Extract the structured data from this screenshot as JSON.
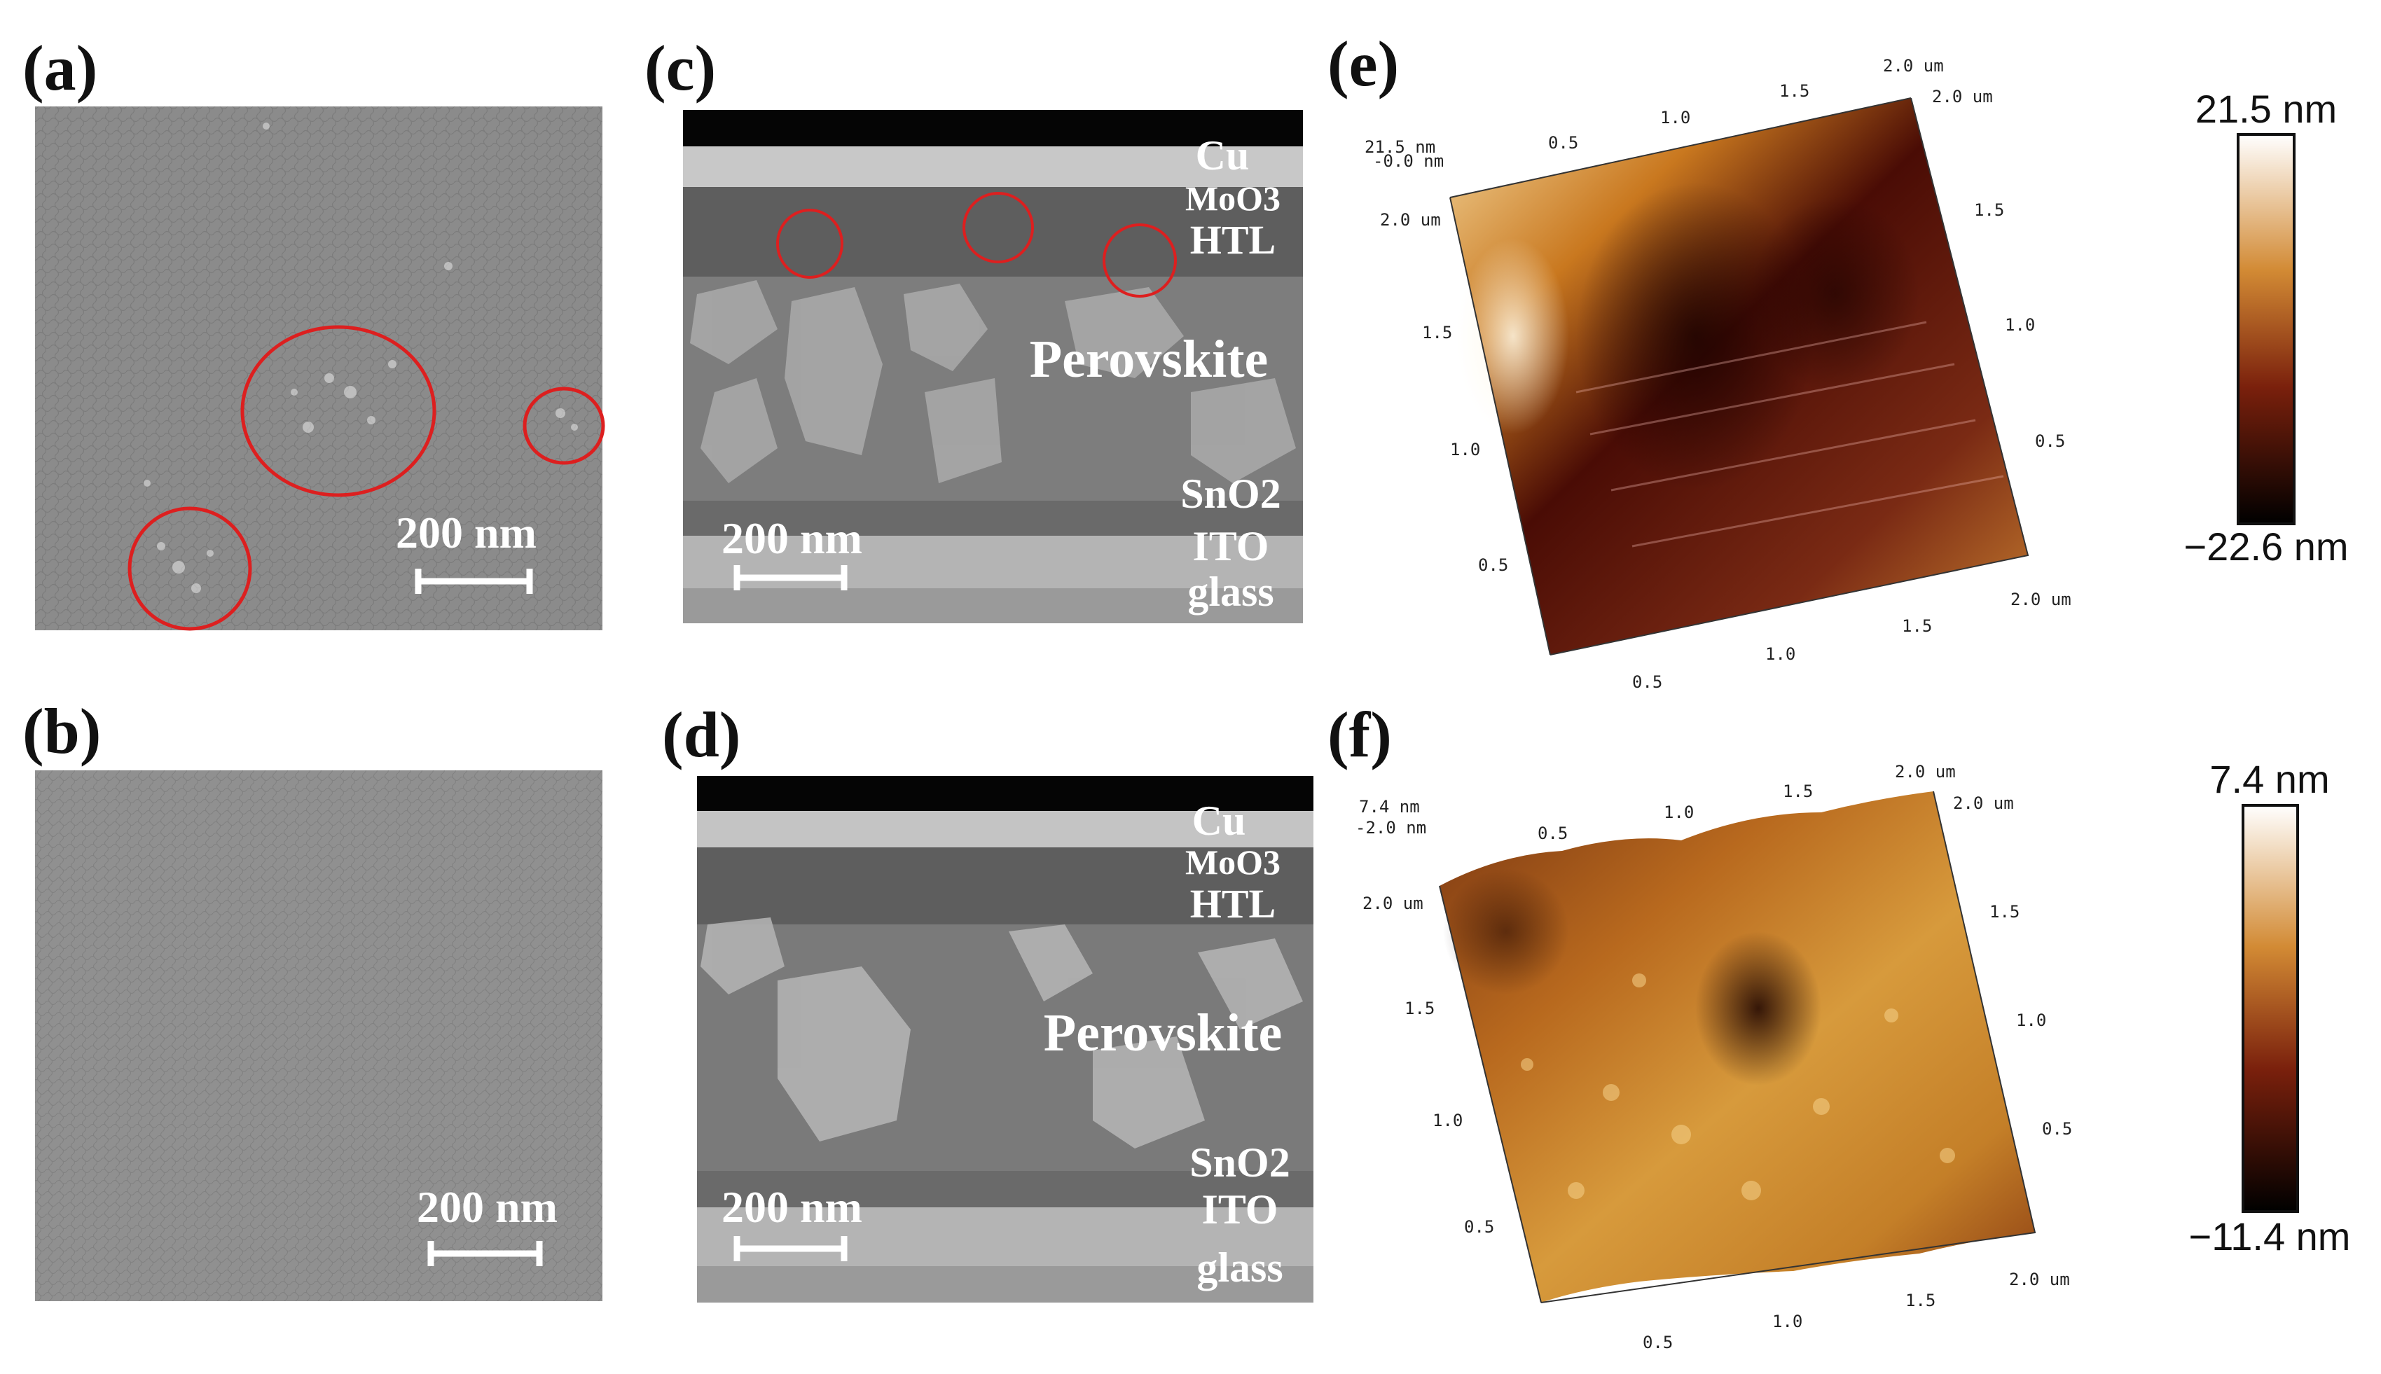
{
  "panels": {
    "a": {
      "label": "(a)",
      "scale_bar": "200 nm"
    },
    "b": {
      "label": "(b)",
      "scale_bar": "200 nm"
    },
    "c": {
      "label": "(c)",
      "scale_bar": "200 nm",
      "layers": [
        "Cu",
        "MoO3",
        "HTL",
        "Perovskite",
        "SnO2",
        "ITO",
        "glass"
      ]
    },
    "d": {
      "label": "(d)",
      "scale_bar": "200 nm",
      "layers": [
        "Cu",
        "MoO3",
        "HTL",
        "Perovskite",
        "SnO2",
        "ITO",
        "glass"
      ]
    },
    "e": {
      "label": "(e)",
      "z_top": "21.5 nm",
      "z_bottom": "-0.0 nm",
      "x_ticks": [
        "0.5",
        "1.0",
        "1.5",
        "2.0 um"
      ],
      "y_ticks": [
        "0.5",
        "1.0",
        "1.5",
        "2.0 um"
      ],
      "colorbar_max": "21.5 nm",
      "colorbar_min": "−22.6 nm"
    },
    "f": {
      "label": "(f)",
      "z_top": "7.4 nm",
      "z_bottom": "-2.0 nm",
      "x_ticks": [
        "0.5",
        "1.0",
        "1.5",
        "2.0 um"
      ],
      "y_ticks": [
        "0.5",
        "1.0",
        "1.5",
        "2.0 um"
      ],
      "colorbar_max": "7.4 nm",
      "colorbar_min": "−11.4 nm"
    }
  },
  "colors": {
    "circle": "#dd1f1f",
    "sem_grey": "#8a8a8a",
    "afm_dark": "#2a0503",
    "afm_mid": "#8a2a0e",
    "afm_light": "#e0a04a"
  }
}
